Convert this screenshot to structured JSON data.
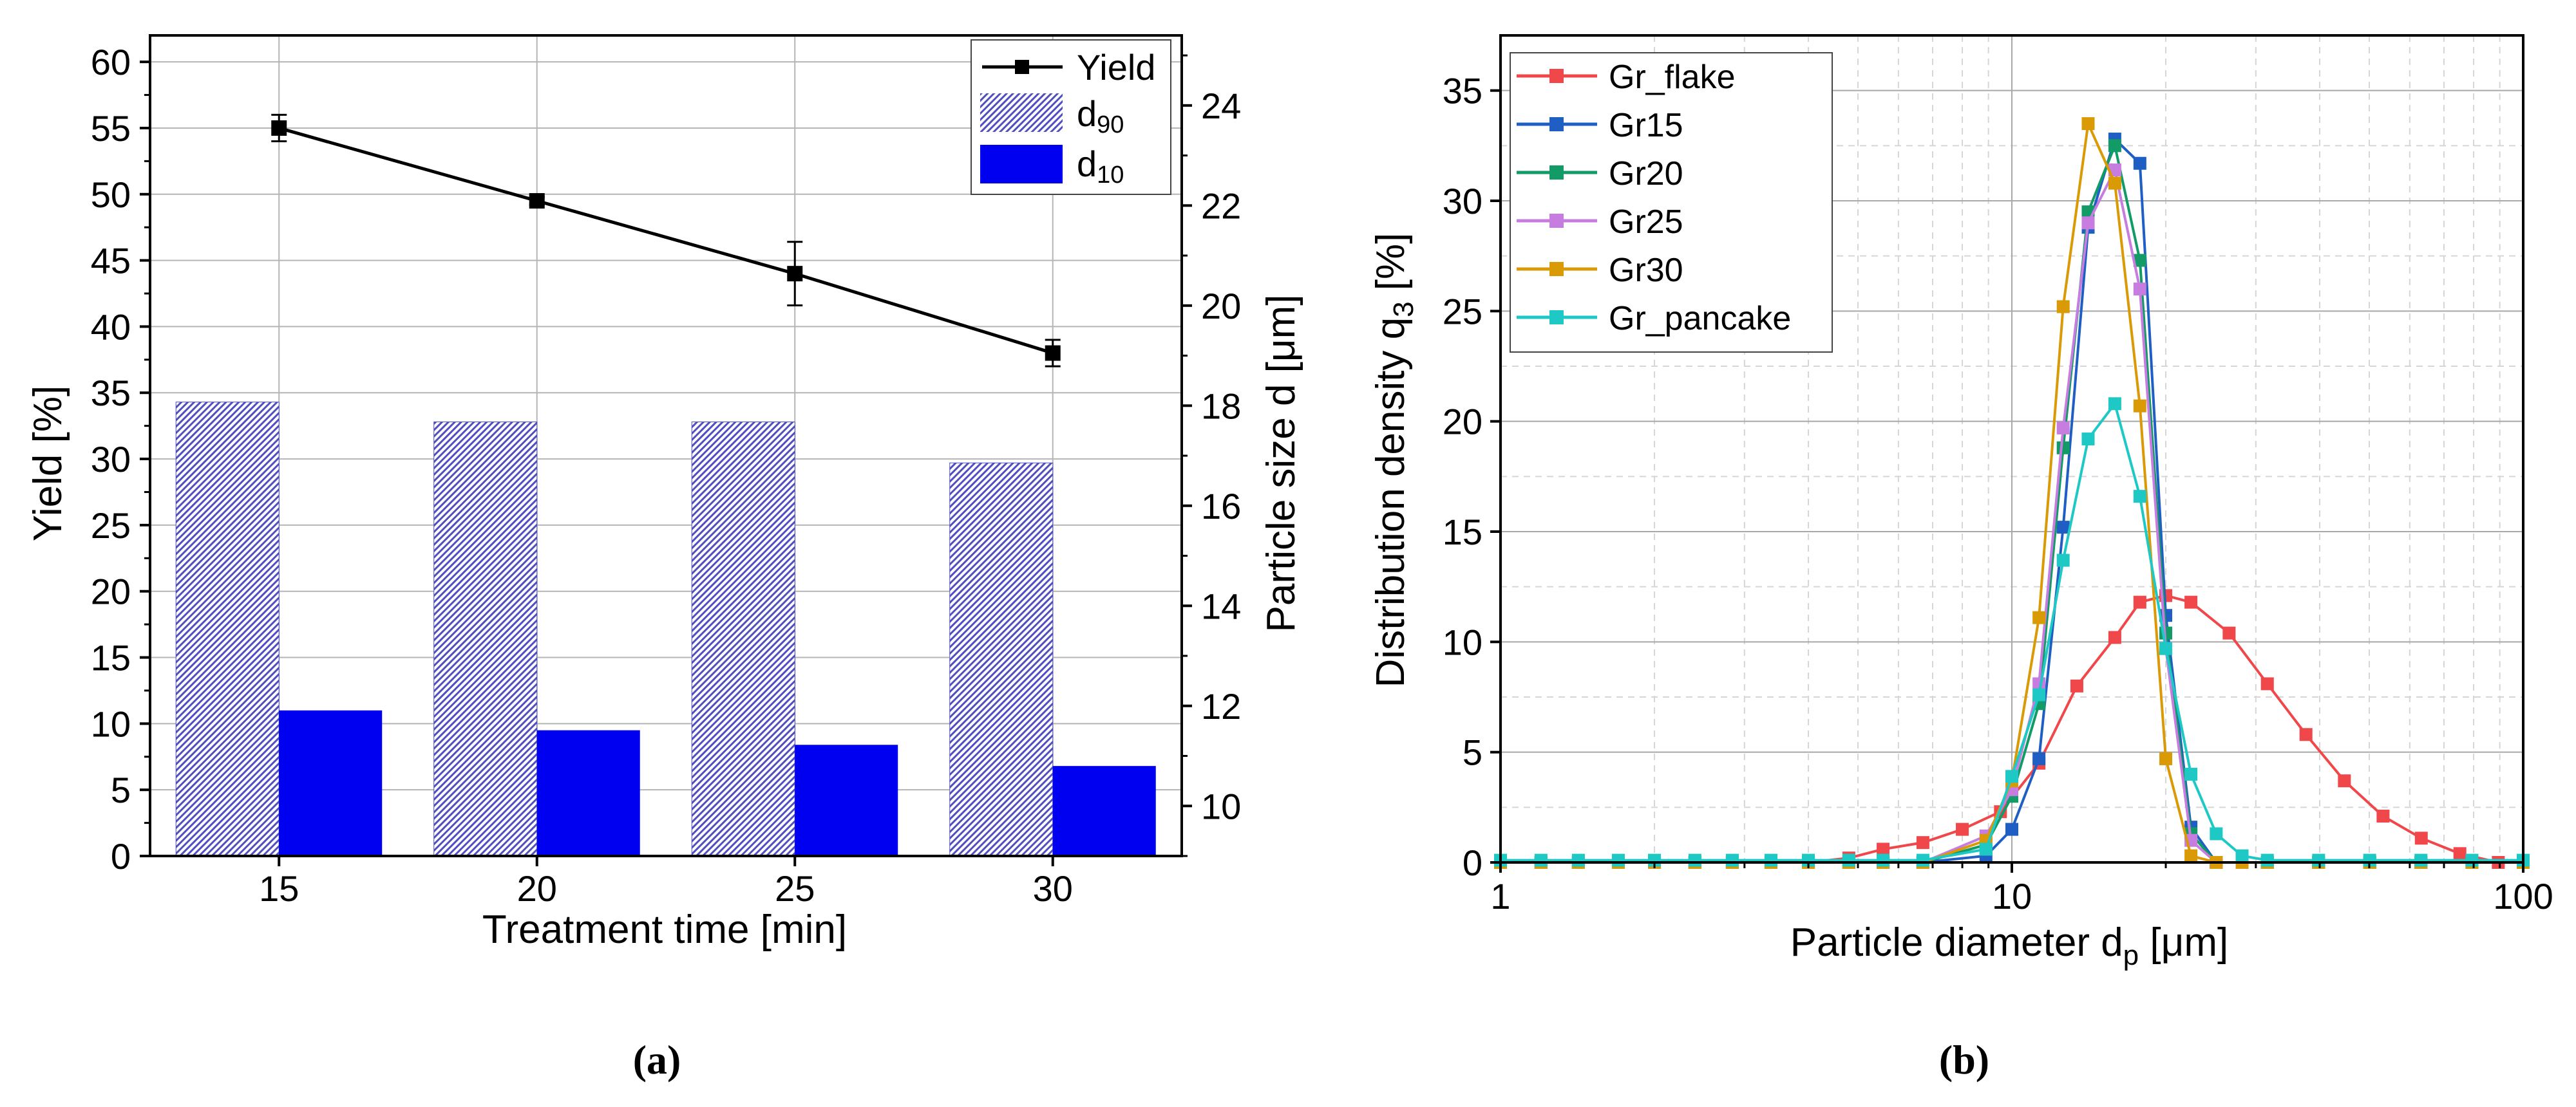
{
  "chart_data": [
    {
      "panel": "a",
      "type": "bar",
      "title": "",
      "caption": "(a)",
      "xlabel": "Treatment time [min]",
      "ylabel": "Yield [%]",
      "y2label_main": "Particle size d [",
      "y2label_unit": "μm",
      "y2label_end": "]",
      "categories": [
        "15",
        "20",
        "25",
        "30"
      ],
      "ylim": [
        0,
        62
      ],
      "yticks": [
        0,
        5,
        10,
        15,
        20,
        25,
        30,
        35,
        40,
        45,
        50,
        55,
        60
      ],
      "y2lim": [
        9,
        25.4
      ],
      "y2ticks": [
        10,
        12,
        14,
        16,
        18,
        20,
        22,
        24
      ],
      "grid": true,
      "legend_position": "top-right",
      "series": [
        {
          "name": "Yield",
          "kind": "line",
          "axis": "left",
          "color": "#000000",
          "values": [
            55.0,
            49.5,
            44.0,
            38.0
          ],
          "errors": [
            1.0,
            0.3,
            2.4,
            1.0
          ]
        },
        {
          "name": "d90",
          "name_main": "d",
          "name_sub": "90",
          "kind": "bar",
          "axis": "left",
          "pattern": "hatched",
          "color": "#4f4fc0",
          "values": [
            34.3,
            32.8,
            32.8,
            29.7
          ]
        },
        {
          "name": "d10",
          "name_main": "d",
          "name_sub": "10",
          "kind": "bar",
          "axis": "left",
          "color": "#0000f0",
          "values": [
            11.0,
            9.5,
            8.4,
            6.8
          ]
        }
      ]
    },
    {
      "panel": "b",
      "type": "line",
      "title": "",
      "caption": "(b)",
      "xlabel_main": "Particle diameter d",
      "xlabel_sub": "p",
      "xlabel_unit": " [μm]",
      "ylabel_main": "Distribution density q",
      "ylabel_sub": "3",
      "ylabel_end": " [%]",
      "xscale": "log",
      "xlim": [
        1,
        100
      ],
      "xticks": [
        "1",
        "10",
        "100"
      ],
      "ylim": [
        0,
        37.5
      ],
      "yticks": [
        0,
        5,
        10,
        15,
        20,
        25,
        30,
        35
      ],
      "grid": true,
      "legend_position": "top-left",
      "series": [
        {
          "name": "Gr_flake",
          "color": "#f0474a",
          "x": [
            1,
            1.2,
            1.42,
            1.7,
            2,
            2.4,
            2.84,
            3.38,
            4,
            4.8,
            5.6,
            6.7,
            8,
            9.5,
            11.3,
            13.4,
            15.9,
            17.8,
            20,
            22.4,
            26.6,
            31.6,
            37.6,
            44.7,
            53.2,
            63.2,
            75.2,
            89.4,
            100
          ],
          "y": [
            0,
            0,
            0,
            0,
            0,
            0,
            0,
            0,
            0,
            0.2,
            0.6,
            0.9,
            1.5,
            2.3,
            4.5,
            8.0,
            10.2,
            11.8,
            12.1,
            11.8,
            10.4,
            8.1,
            5.8,
            3.7,
            2.1,
            1.1,
            0.4,
            0,
            0
          ]
        },
        {
          "name": "Gr15",
          "color": "#1f5fc4",
          "x": [
            1,
            1.2,
            1.42,
            1.7,
            2,
            2.4,
            2.84,
            3.38,
            4,
            4.8,
            5.6,
            6.7,
            8.9,
            10,
            11.3,
            12.6,
            14.1,
            15.9,
            17.8,
            20,
            22.4,
            25.1,
            28.2,
            31.6,
            39.8,
            50.1,
            63.1,
            79.4,
            100
          ],
          "y": [
            0,
            0,
            0,
            0,
            0,
            0,
            0,
            0,
            0,
            0,
            0,
            0,
            0.3,
            1.5,
            4.7,
            15.2,
            28.8,
            32.8,
            31.7,
            11.2,
            1.6,
            0,
            0,
            0,
            0,
            0,
            0,
            0,
            0
          ]
        },
        {
          "name": "Gr20",
          "color": "#129a67",
          "x": [
            1,
            1.2,
            1.42,
            1.7,
            2,
            2.4,
            2.84,
            3.38,
            4,
            4.8,
            5.6,
            6.7,
            8.9,
            10,
            11.3,
            12.6,
            14.1,
            15.9,
            17.8,
            20,
            22.4,
            25.1,
            28.2,
            31.6,
            39.8,
            50.1,
            63.1,
            79.4,
            100
          ],
          "y": [
            0,
            0,
            0,
            0,
            0,
            0,
            0,
            0,
            0,
            0,
            0,
            0,
            0.8,
            3.0,
            7.2,
            18.8,
            29.5,
            32.5,
            27.3,
            10.4,
            1.3,
            0,
            0,
            0,
            0,
            0,
            0,
            0,
            0
          ]
        },
        {
          "name": "Gr25",
          "color": "#c77ce0",
          "x": [
            1,
            1.2,
            1.42,
            1.7,
            2,
            2.4,
            2.84,
            3.38,
            4,
            4.8,
            5.6,
            6.7,
            8.9,
            10,
            11.3,
            12.6,
            14.1,
            15.9,
            17.8,
            20,
            22.4,
            25.1,
            28.2,
            31.6,
            39.8,
            50.1,
            63.1,
            79.4,
            100
          ],
          "y": [
            0,
            0,
            0,
            0,
            0,
            0,
            0,
            0,
            0,
            0,
            0,
            0,
            1.2,
            3.3,
            8.1,
            19.7,
            29.0,
            31.4,
            26.0,
            9.7,
            1.0,
            0,
            0,
            0,
            0,
            0,
            0,
            0,
            0
          ]
        },
        {
          "name": "Gr30",
          "color": "#d99a06",
          "x": [
            1,
            1.2,
            1.42,
            1.7,
            2,
            2.4,
            2.84,
            3.38,
            4,
            4.8,
            5.6,
            6.7,
            8.9,
            10,
            11.3,
            12.6,
            14.1,
            15.9,
            17.8,
            20,
            22.4,
            25.1,
            28.2,
            31.6,
            39.8,
            50.1,
            63.1,
            79.4,
            100
          ],
          "y": [
            0,
            0,
            0,
            0,
            0,
            0,
            0,
            0,
            0,
            0,
            0,
            0,
            1.0,
            3.7,
            11.1,
            25.2,
            33.5,
            30.8,
            20.7,
            4.7,
            0.3,
            0,
            0,
            0,
            0,
            0,
            0,
            0,
            0
          ]
        },
        {
          "name": "Gr_pancake",
          "color": "#1ec9c5",
          "x": [
            1,
            1.2,
            1.42,
            1.7,
            2,
            2.4,
            2.84,
            3.38,
            4,
            4.8,
            5.6,
            6.7,
            8.9,
            10,
            11.3,
            12.6,
            14.1,
            15.9,
            17.8,
            20,
            22.4,
            25.1,
            28.2,
            31.6,
            39.8,
            50.1,
            63.1,
            79.4,
            100
          ],
          "y": [
            0.1,
            0.1,
            0.1,
            0.1,
            0.1,
            0.1,
            0.1,
            0.1,
            0.1,
            0.1,
            0.1,
            0.1,
            0.6,
            3.9,
            7.6,
            13.7,
            19.2,
            20.8,
            16.6,
            9.7,
            4.0,
            1.3,
            0.3,
            0.1,
            0.1,
            0.1,
            0.1,
            0.1,
            0.1
          ]
        }
      ]
    }
  ]
}
